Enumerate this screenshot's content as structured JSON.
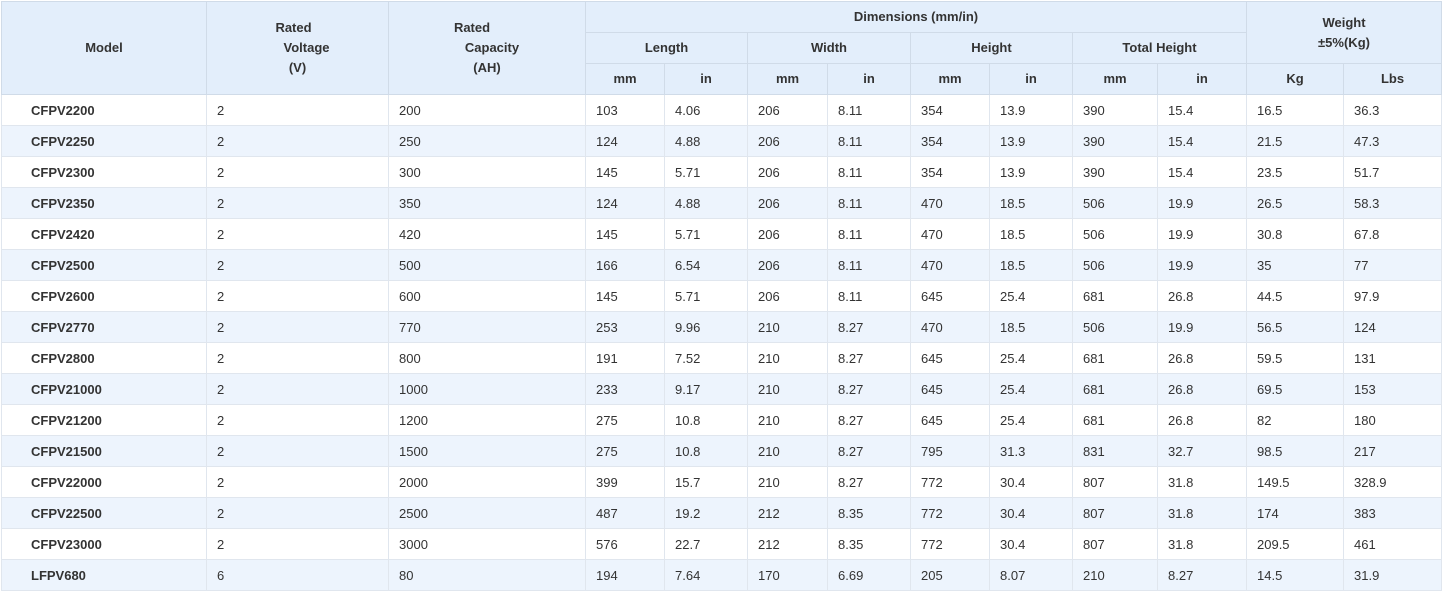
{
  "header": {
    "model": "Model",
    "voltage": [
      "Rated",
      "Voltage",
      "(V)"
    ],
    "capacity": [
      "Rated",
      "Capacity",
      "(AH)"
    ],
    "dimensions": "Dimensions  (mm/in)",
    "length": "Length",
    "width": "Width",
    "height": "Height",
    "total_height": "Total Height",
    "weight": [
      "Weight",
      "±5%(Kg)"
    ],
    "mm": "mm",
    "in": "in",
    "kg": "Kg",
    "lbs": "Lbs"
  },
  "rows": [
    [
      "CFPV2200",
      "2",
      "200",
      "103",
      "4.06",
      "206",
      "8.11",
      "354",
      "13.9",
      "390",
      "15.4",
      "16.5",
      "36.3"
    ],
    [
      "CFPV2250",
      "2",
      "250",
      "124",
      "4.88",
      "206",
      "8.11",
      "354",
      "13.9",
      "390",
      "15.4",
      "21.5",
      "47.3"
    ],
    [
      "CFPV2300",
      "2",
      "300",
      "145",
      "5.71",
      "206",
      "8.11",
      "354",
      "13.9",
      "390",
      "15.4",
      "23.5",
      "51.7"
    ],
    [
      "CFPV2350",
      "2",
      "350",
      "124",
      "4.88",
      "206",
      "8.11",
      "470",
      "18.5",
      "506",
      "19.9",
      "26.5",
      "58.3"
    ],
    [
      "CFPV2420",
      "2",
      "420",
      "145",
      "5.71",
      "206",
      "8.11",
      "470",
      "18.5",
      "506",
      "19.9",
      "30.8",
      "67.8"
    ],
    [
      "CFPV2500",
      "2",
      "500",
      "166",
      "6.54",
      "206",
      "8.11",
      "470",
      "18.5",
      "506",
      "19.9",
      "35",
      "77"
    ],
    [
      "CFPV2600",
      "2",
      "600",
      "145",
      "5.71",
      "206",
      "8.11",
      "645",
      "25.4",
      "681",
      "26.8",
      "44.5",
      "97.9"
    ],
    [
      "CFPV2770",
      "2",
      "770",
      "253",
      "9.96",
      "210",
      "8.27",
      "470",
      "18.5",
      "506",
      "19.9",
      "56.5",
      "124"
    ],
    [
      "CFPV2800",
      "2",
      "800",
      "191",
      "7.52",
      "210",
      "8.27",
      "645",
      "25.4",
      "681",
      "26.8",
      "59.5",
      "131"
    ],
    [
      "CFPV21000",
      "2",
      "1000",
      "233",
      "9.17",
      "210",
      "8.27",
      "645",
      "25.4",
      "681",
      "26.8",
      "69.5",
      "153"
    ],
    [
      "CFPV21200",
      "2",
      "1200",
      "275",
      "10.8",
      "210",
      "8.27",
      "645",
      "25.4",
      "681",
      "26.8",
      "82",
      "180"
    ],
    [
      "CFPV21500",
      "2",
      "1500",
      "275",
      "10.8",
      "210",
      "8.27",
      "795",
      "31.3",
      "831",
      "32.7",
      "98.5",
      "217"
    ],
    [
      "CFPV22000",
      "2",
      "2000",
      "399",
      "15.7",
      "210",
      "8.27",
      "772",
      "30.4",
      "807",
      "31.8",
      "149.5",
      "328.9"
    ],
    [
      "CFPV22500",
      "2",
      "2500",
      "487",
      "19.2",
      "212",
      "8.35",
      "772",
      "30.4",
      "807",
      "31.8",
      "174",
      "383"
    ],
    [
      "CFPV23000",
      "2",
      "3000",
      "576",
      "22.7",
      "212",
      "8.35",
      "772",
      "30.4",
      "807",
      "31.8",
      "209.5",
      "461"
    ],
    [
      "LFPV680",
      "6",
      "80",
      "194",
      "7.64",
      "170",
      "6.69",
      "205",
      "8.07",
      "210",
      "8.27",
      "14.5",
      "31.9"
    ]
  ]
}
